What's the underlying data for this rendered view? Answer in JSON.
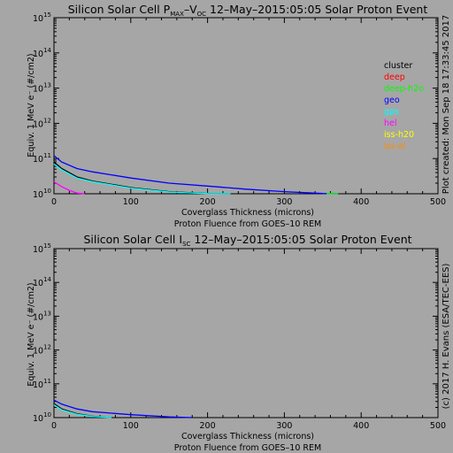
{
  "colors": {
    "background": "#a6a6a6",
    "cluster": "#000000",
    "deep": "#ff0000",
    "deep_h2o": "#00ff00",
    "geo": "#0000ff",
    "gps": "#00ffff",
    "hel": "#ff00ff",
    "iss_h2o": "#ffff00",
    "iss_al": "#ff8c00"
  },
  "side_labels": {
    "created": "Plot created: Mon Sep 18 17:33:45 2017",
    "credit": "(c) 2017 H. Evans (ESA/TEC-EES)"
  },
  "chart_data": [
    {
      "type": "line",
      "title_prefix": "Silicon Solar Cell P",
      "title_sub1": "MAX",
      "title_mid": "–V",
      "title_sub2": "OC",
      "title_suffix": " 12–May–2015:05:05 Solar Proton Event",
      "xlabel": "Coverglass Thickness (microns)",
      "xlabel2": "Proton Fluence from GOES–10 REM",
      "ylabel": "Equiv. 1 MeV e⁻ (#/cm2)",
      "xlim": [
        0,
        500
      ],
      "ylim_log10": [
        10,
        15
      ],
      "y_scale": "log",
      "x_ticks": [
        "0",
        "100",
        "200",
        "300",
        "400",
        "500"
      ],
      "y_tick_exponents": [
        "10",
        "11",
        "12",
        "13",
        "14",
        "15"
      ],
      "legend": [
        "cluster",
        "deep",
        "deep-h2o",
        "geo",
        "gps",
        "hel",
        "iss-h20",
        "iss-al"
      ],
      "legend_placement": "right",
      "series": [
        {
          "name": "geo",
          "color": "#0000ff",
          "x": [
            0,
            10,
            30,
            50,
            100,
            150,
            200,
            250,
            300,
            350,
            370
          ],
          "y": [
            120000000000.0,
            80000000000.0,
            52000000000.0,
            42000000000.0,
            28000000000.0,
            20000000000.0,
            16500000000.0,
            13500000000.0,
            11500000000.0,
            10200000000.0,
            10000000000.0
          ]
        },
        {
          "name": "cluster",
          "color": "#000000",
          "x": [
            0,
            10,
            30,
            50,
            100,
            150,
            200,
            230
          ],
          "y": [
            80000000000.0,
            52000000000.0,
            30000000000.0,
            23000000000.0,
            15000000000.0,
            11500000000.0,
            10200000000.0,
            10000000000.0
          ]
        },
        {
          "name": "gps",
          "color": "#00ffff",
          "x": [
            0,
            10,
            30,
            50,
            100,
            150,
            200,
            230
          ],
          "y": [
            70000000000.0,
            48000000000.0,
            28000000000.0,
            22000000000.0,
            14500000000.0,
            11200000000.0,
            10100000000.0,
            10000000000.0
          ]
        },
        {
          "name": "hel",
          "color": "#ff00ff",
          "x": [
            0,
            10,
            20,
            30,
            40
          ],
          "y": [
            22000000000.0,
            16000000000.0,
            12500000000.0,
            10500000000.0,
            10000000000.0
          ]
        },
        {
          "name": "deep-h2o",
          "color": "#00ff00",
          "x": [
            355,
            365,
            370
          ],
          "y": [
            10200000000.0,
            10000000000.0,
            10000000000.0
          ]
        }
      ]
    },
    {
      "type": "line",
      "title_prefix": "Silicon Solar Cell I",
      "title_sub1": "SC",
      "title_suffix": " 12–May–2015:05:05 Solar Proton Event",
      "xlabel": "Coverglass Thickness (microns)",
      "xlabel2": "Proton Fluence from GOES–10 REM",
      "ylabel": "Equiv. 1 MeV e⁻ (#/cm2)",
      "xlim": [
        0,
        500
      ],
      "ylim_log10": [
        10,
        15
      ],
      "y_scale": "log",
      "x_ticks": [
        "0",
        "100",
        "200",
        "300",
        "400",
        "500"
      ],
      "y_tick_exponents": [
        "10",
        "11",
        "12",
        "13",
        "14",
        "15"
      ],
      "series": [
        {
          "name": "geo",
          "color": "#0000ff",
          "x": [
            0,
            10,
            30,
            50,
            100,
            150,
            180
          ],
          "y": [
            33000000000.0,
            25000000000.0,
            18000000000.0,
            15000000000.0,
            12200000000.0,
            10500000000.0,
            10000000000.0
          ]
        },
        {
          "name": "cluster",
          "color": "#000000",
          "x": [
            0,
            10,
            30,
            50,
            75
          ],
          "y": [
            26000000000.0,
            18000000000.0,
            13000000000.0,
            11000000000.0,
            10000000000.0
          ]
        },
        {
          "name": "gps",
          "color": "#00ffff",
          "x": [
            0,
            10,
            30,
            50,
            75
          ],
          "y": [
            24000000000.0,
            17000000000.0,
            12500000000.0,
            10800000000.0,
            10000000000.0
          ]
        }
      ]
    }
  ]
}
